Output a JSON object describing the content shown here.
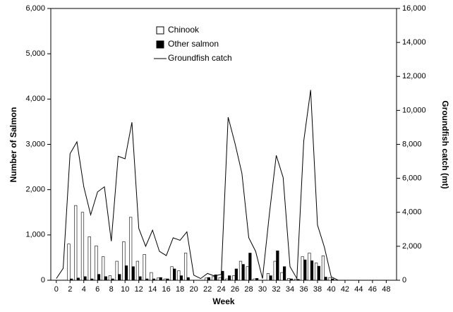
{
  "chart_data": {
    "type": "bar",
    "x_label": "Week",
    "y_label": "Number of Salmon",
    "y2_label": "Groundfish catch (mt)",
    "x": [
      0,
      1,
      2,
      3,
      4,
      5,
      6,
      7,
      8,
      9,
      10,
      11,
      12,
      13,
      14,
      15,
      16,
      17,
      18,
      19,
      20,
      21,
      22,
      23,
      24,
      25,
      26,
      27,
      28,
      29,
      30,
      31,
      32,
      33,
      34,
      35,
      36,
      37,
      38,
      39,
      40,
      41,
      42,
      43,
      44,
      45,
      46,
      47,
      48,
      49
    ],
    "xlim": [
      -0.8,
      49.5
    ],
    "xticks": [
      0,
      2,
      4,
      6,
      8,
      10,
      12,
      14,
      16,
      18,
      20,
      22,
      24,
      26,
      28,
      30,
      32,
      34,
      36,
      38,
      40,
      42,
      44,
      46,
      48
    ],
    "ylim": [
      0,
      6000
    ],
    "yticks": [
      0,
      {
        "value": 1000,
        "label": "1,000"
      },
      {
        "value": 2000,
        "label": "2,000"
      },
      {
        "value": 3000,
        "label": "3,000"
      },
      {
        "value": 4000,
        "label": "4,000"
      },
      {
        "value": 5000,
        "label": "5,000"
      },
      {
        "value": 6000,
        "label": "6,000"
      }
    ],
    "y2lim": [
      0,
      16000
    ],
    "y2ticks": [
      0,
      {
        "value": 2000,
        "label": "2,000"
      },
      {
        "value": 4000,
        "label": "4,000"
      },
      {
        "value": 6000,
        "label": "6,000"
      },
      {
        "value": 8000,
        "label": "8,000"
      },
      {
        "value": 10000,
        "label": "10,000"
      },
      {
        "value": 12000,
        "label": "12,000"
      },
      {
        "value": 14000,
        "label": "14,000"
      },
      {
        "value": 16000,
        "label": "16,000"
      }
    ],
    "series": [
      {
        "name": "Chinook",
        "type": "bar",
        "color": "#ffffff",
        "values": [
          0,
          0,
          800,
          1650,
          1500,
          960,
          760,
          520,
          100,
          420,
          850,
          1390,
          420,
          570,
          170,
          50,
          30,
          300,
          210,
          600,
          0,
          0,
          50,
          80,
          60,
          30,
          100,
          420,
          300,
          30,
          0,
          150,
          420,
          170,
          40,
          20,
          520,
          600,
          380,
          540,
          60,
          0,
          0,
          0,
          0,
          0,
          0,
          0,
          0,
          0
        ]
      },
      {
        "name": "Other salmon",
        "type": "bar",
        "color": "#000000",
        "values": [
          0,
          0,
          30,
          50,
          80,
          30,
          130,
          80,
          30,
          130,
          320,
          300,
          80,
          30,
          30,
          60,
          30,
          250,
          100,
          60,
          0,
          0,
          60,
          120,
          200,
          100,
          250,
          350,
          600,
          40,
          0,
          100,
          650,
          300,
          30,
          20,
          450,
          430,
          310,
          70,
          30,
          0,
          0,
          0,
          0,
          0,
          0,
          0,
          0,
          0
        ]
      },
      {
        "name": "Groundfish catch",
        "type": "line",
        "axis": "y2",
        "color": "#000000",
        "values": [
          100,
          700,
          7450,
          8150,
          5500,
          3850,
          5200,
          5500,
          2300,
          7300,
          7150,
          9300,
          3050,
          2000,
          2950,
          1700,
          1450,
          2500,
          2350,
          2850,
          300,
          100,
          400,
          250,
          350,
          9600,
          8050,
          6300,
          2500,
          1700,
          100,
          3900,
          7350,
          6050,
          800,
          100,
          8200,
          11200,
          3250,
          1950,
          200,
          0,
          0,
          0,
          0,
          0,
          0,
          0,
          0,
          0
        ]
      }
    ]
  }
}
